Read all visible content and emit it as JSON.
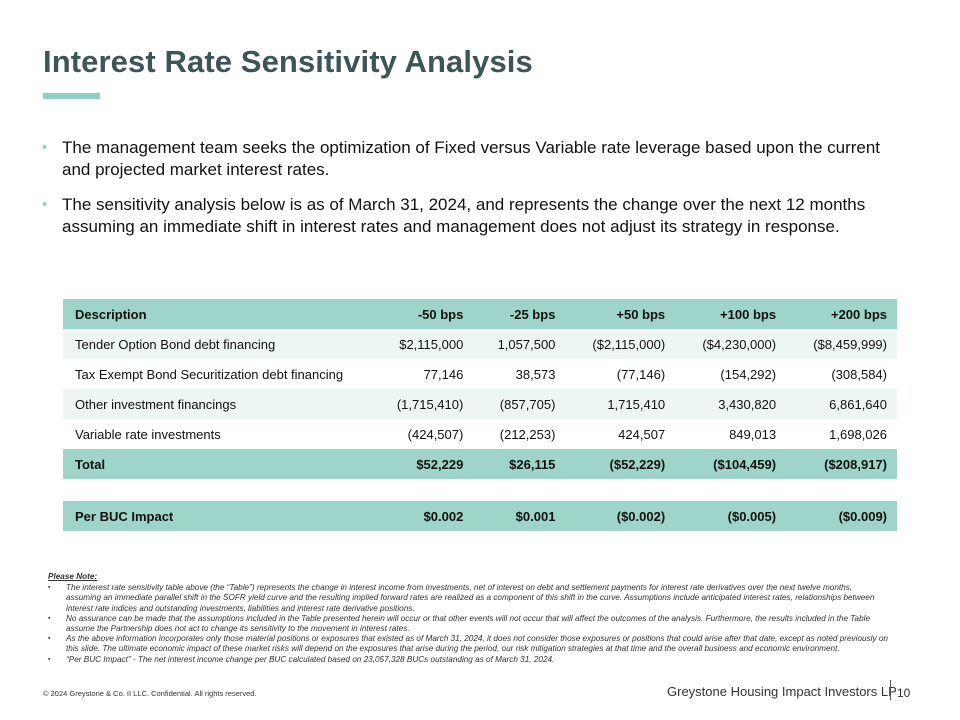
{
  "title": "Interest Rate Sensitivity Analysis",
  "bullets": [
    "The management team seeks the optimization of Fixed versus Variable rate leverage based upon the current and projected market interest rates.",
    "The sensitivity analysis below is as of March 31, 2024, and represents the change over the next 12 months assuming an immediate shift in interest rates and management does not adjust its strategy in response."
  ],
  "bullet_marker": "•",
  "table": {
    "headers": [
      "Description",
      "-50 bps",
      "-25 bps",
      "+50 bps",
      "+100 bps",
      "+200 bps"
    ],
    "rows": [
      [
        "Tender Option Bond debt financing",
        "$2,115,000",
        "1,057,500",
        "($2,115,000)",
        "($4,230,000)",
        "($8,459,999)"
      ],
      [
        "Tax Exempt Bond Securitization debt financing",
        "77,146",
        "38,573",
        "(77,146)",
        "(154,292)",
        "(308,584)"
      ],
      [
        "Other investment financings",
        "(1,715,410)",
        "(857,705)",
        "1,715,410",
        "3,430,820",
        "6,861,640"
      ],
      [
        "Variable rate investments",
        "(424,507)",
        "(212,253)",
        "424,507",
        "849,013",
        "1,698,026"
      ]
    ],
    "total": [
      "Total",
      "$52,229",
      "$26,115",
      "($52,229)",
      "($104,459)",
      "($208,917)"
    ],
    "per_buc": [
      "Per BUC Impact",
      "$0.002",
      "$0.001",
      "($0.002)",
      "($0.005)",
      "($0.009)"
    ]
  },
  "notes": {
    "title": "Please Note:",
    "marker": "▪",
    "items": [
      "The interest rate sensitivity table above (the “Table”) represents the change in interest income from investments, net of interest on debt and settlement payments for interest rate derivatives over the next twelve months, assuming an immediate parallel shift in the SOFR yield curve and the resulting implied forward rates are realized as a component of this shift in the curve. Assumptions include anticipated interest rates, relationships between interest rate indices and outstanding investments, liabilities and interest rate derivative positions.",
      "No assurance can be made that the assumptions included in the Table presented herein will occur or that other events will not occur that will affect the outcomes of the analysis. Furthermore, the results included in the Table assume the Partnership does not act to change its sensitivity to the movement in interest rates.",
      "As the above information incorporates only those material positions or exposures that existed as of March 31, 2024, it does not consider those exposures or positions that could arise after that date, except as noted previously on this slide. The ultimate economic impact of these market risks will depend on the exposures that arise during the period, our risk mitigation strategies at that time and the overall business and economic environment.",
      "“Per BUC Impact” - The net interest income change per BUC calculated based on 23,057,328 BUCs outstanding as of March 31, 2024."
    ]
  },
  "footer": {
    "copyright": "© 2024 Greystone & Co. II LLC. Confidential. All rights reserved.",
    "company": "Greystone Housing Impact Investors LP",
    "page": "10"
  },
  "colors": {
    "title": "#3e5558",
    "accent": "#8fcfc4",
    "table_header": "#9fd4ca",
    "table_stripe": "#eef6f4"
  }
}
